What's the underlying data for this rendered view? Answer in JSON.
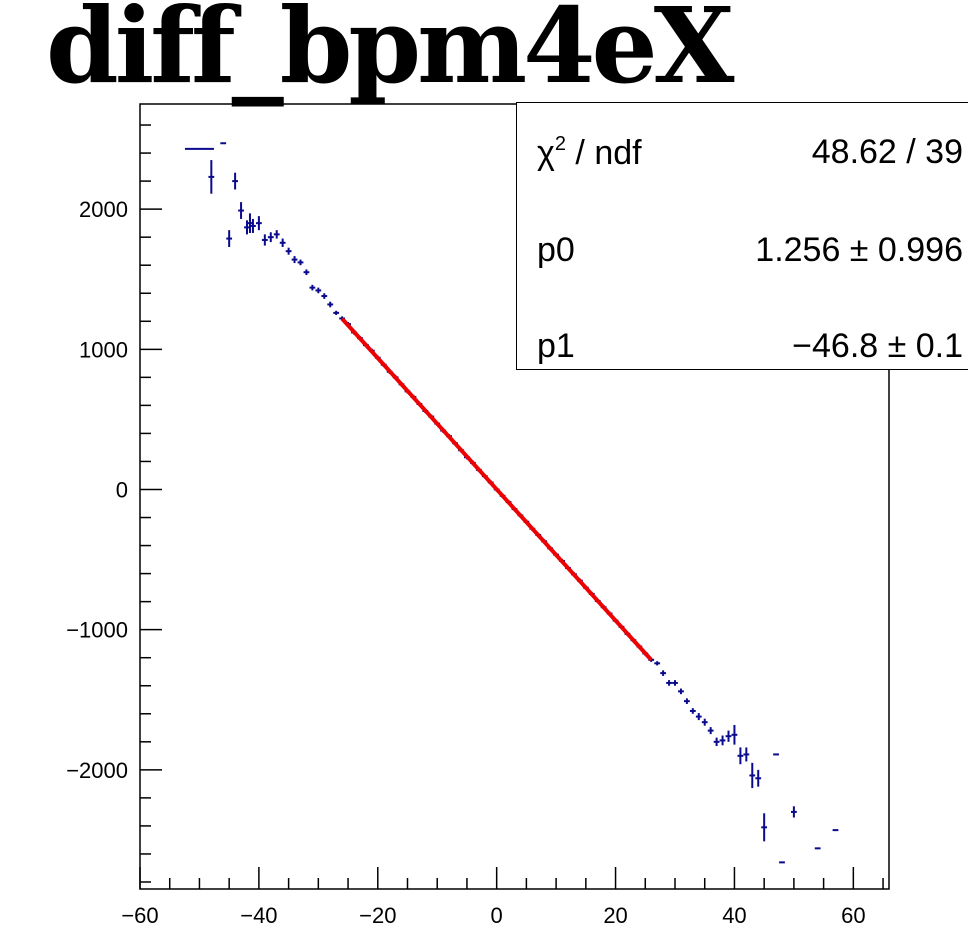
{
  "title": "diff_bpm4eX",
  "stats": {
    "chi2_label": "χ",
    "chi2_sup": "2",
    "chi2_rest": " / ndf",
    "chi2_value": "48.62 / 39",
    "p0_label": "p0",
    "p0_value": "1.256 ± 0.996",
    "p1_label": "p1",
    "p1_value": "−46.8 ± 0.1"
  },
  "chart_data": {
    "type": "scatter",
    "title": "diff_bpm4eX",
    "xlabel": "",
    "ylabel": "",
    "xlim": [
      -60,
      66
    ],
    "ylim": [
      -2850,
      2750
    ],
    "xticks": [
      -60,
      -40,
      -20,
      0,
      20,
      40,
      60
    ],
    "xtick_labels": [
      "−60",
      "−40",
      "−20",
      "0",
      "20",
      "40",
      "60"
    ],
    "yticks": [
      -2000,
      -1000,
      0,
      1000,
      2000
    ],
    "ytick_labels": [
      "−2000",
      "−1000",
      "0",
      "1000",
      "2000"
    ],
    "grid": false,
    "colors": {
      "points": "#0a0a8c",
      "fit": "#ee0000",
      "axes": "#000000"
    },
    "series": [
      {
        "points": [
          [
            -50,
            2430,
            5,
            0
          ],
          [
            -48,
            2230,
            1,
            120
          ],
          [
            -46,
            2470,
            1,
            0
          ],
          [
            -45,
            1790,
            1,
            60
          ],
          [
            -44,
            2200,
            1,
            60
          ],
          [
            -43,
            1990,
            1,
            60
          ],
          [
            -42,
            1870,
            1,
            50
          ],
          [
            -41.5,
            1900,
            1,
            70
          ],
          [
            -41,
            1880,
            1,
            50
          ],
          [
            -40,
            1900,
            1,
            50
          ],
          [
            -39,
            1780,
            1,
            40
          ],
          [
            -38,
            1800,
            1,
            35
          ],
          [
            -37,
            1820,
            1,
            30
          ],
          [
            -36,
            1760,
            1,
            30
          ],
          [
            -35,
            1700,
            1,
            25
          ],
          [
            -34,
            1640,
            1,
            25
          ],
          [
            -33,
            1620,
            1,
            20
          ],
          [
            -32,
            1550,
            1,
            20
          ],
          [
            -31,
            1440,
            1,
            20
          ],
          [
            -30,
            1420,
            1,
            20
          ],
          [
            -29,
            1380,
            1,
            20
          ],
          [
            -28,
            1320,
            1,
            20
          ],
          [
            -27,
            1260,
            1,
            15
          ],
          [
            -26,
            1220,
            1,
            15
          ],
          [
            -25,
            1180,
            1,
            15
          ],
          [
            -24,
            1120,
            1,
            15
          ],
          [
            -23,
            1080,
            1,
            15
          ],
          [
            -22,
            1030,
            1,
            15
          ],
          [
            -21,
            990,
            1,
            15
          ],
          [
            -20,
            940,
            1,
            15
          ],
          [
            -19,
            890,
            1,
            15
          ],
          [
            -18,
            840,
            1,
            15
          ],
          [
            -17,
            800,
            1,
            15
          ],
          [
            -16,
            750,
            1,
            15
          ],
          [
            -15,
            700,
            1,
            15
          ],
          [
            -14,
            660,
            1,
            15
          ],
          [
            -13,
            610,
            1,
            15
          ],
          [
            -12,
            560,
            1,
            15
          ],
          [
            -11,
            520,
            1,
            15
          ],
          [
            -10,
            470,
            1,
            15
          ],
          [
            -9,
            420,
            1,
            15
          ],
          [
            -8,
            380,
            1,
            15
          ],
          [
            -7,
            330,
            1,
            15
          ],
          [
            -6,
            280,
            1,
            15
          ],
          [
            -5,
            230,
            1,
            15
          ],
          [
            -4,
            190,
            1,
            15
          ],
          [
            -3,
            140,
            1,
            15
          ],
          [
            -2,
            95,
            1,
            15
          ],
          [
            -1,
            50,
            1,
            15
          ],
          [
            0,
            0,
            1,
            15
          ],
          [
            1,
            -45,
            1,
            15
          ],
          [
            2,
            -90,
            1,
            15
          ],
          [
            3,
            -140,
            1,
            15
          ],
          [
            4,
            -185,
            1,
            15
          ],
          [
            5,
            -230,
            1,
            15
          ],
          [
            6,
            -280,
            1,
            15
          ],
          [
            7,
            -325,
            1,
            15
          ],
          [
            8,
            -370,
            1,
            15
          ],
          [
            9,
            -420,
            1,
            15
          ],
          [
            10,
            -465,
            1,
            15
          ],
          [
            11,
            -510,
            1,
            15
          ],
          [
            12,
            -560,
            1,
            15
          ],
          [
            13,
            -605,
            1,
            15
          ],
          [
            14,
            -650,
            1,
            15
          ],
          [
            15,
            -700,
            1,
            15
          ],
          [
            16,
            -745,
            1,
            15
          ],
          [
            17,
            -795,
            1,
            15
          ],
          [
            18,
            -840,
            1,
            15
          ],
          [
            19,
            -885,
            1,
            15
          ],
          [
            20,
            -935,
            1,
            15
          ],
          [
            21,
            -980,
            1,
            15
          ],
          [
            22,
            -1030,
            1,
            15
          ],
          [
            23,
            -1075,
            1,
            15
          ],
          [
            24,
            -1120,
            1,
            15
          ],
          [
            25,
            -1170,
            1,
            15
          ],
          [
            26,
            -1215,
            1,
            15
          ],
          [
            27,
            -1240,
            1,
            15
          ],
          [
            28,
            -1310,
            1,
            20
          ],
          [
            29,
            -1380,
            1,
            20
          ],
          [
            30,
            -1380,
            1,
            20
          ],
          [
            31,
            -1440,
            1,
            20
          ],
          [
            32,
            -1510,
            1,
            20
          ],
          [
            33,
            -1580,
            1,
            20
          ],
          [
            34,
            -1620,
            1,
            25
          ],
          [
            35,
            -1660,
            1,
            25
          ],
          [
            36,
            -1720,
            1,
            25
          ],
          [
            37,
            -1800,
            1,
            30
          ],
          [
            38,
            -1790,
            1,
            35
          ],
          [
            39,
            -1760,
            1,
            40
          ],
          [
            40,
            -1750,
            1,
            70
          ],
          [
            41,
            -1900,
            1,
            60
          ],
          [
            42,
            -1890,
            1,
            50
          ],
          [
            43,
            -2040,
            1,
            90
          ],
          [
            44,
            -2060,
            1,
            60
          ],
          [
            45,
            -2410,
            1,
            100
          ],
          [
            47,
            -1890,
            1,
            0
          ],
          [
            48,
            -2660,
            1,
            0
          ],
          [
            50,
            -2300,
            1,
            40
          ],
          [
            54,
            -2560,
            1,
            0
          ],
          [
            57,
            -2430,
            1,
            0
          ]
        ]
      }
    ],
    "fit": {
      "function": "pol1",
      "p0": 1.256,
      "p1": -46.8,
      "x_range": [
        -26,
        26
      ]
    }
  }
}
